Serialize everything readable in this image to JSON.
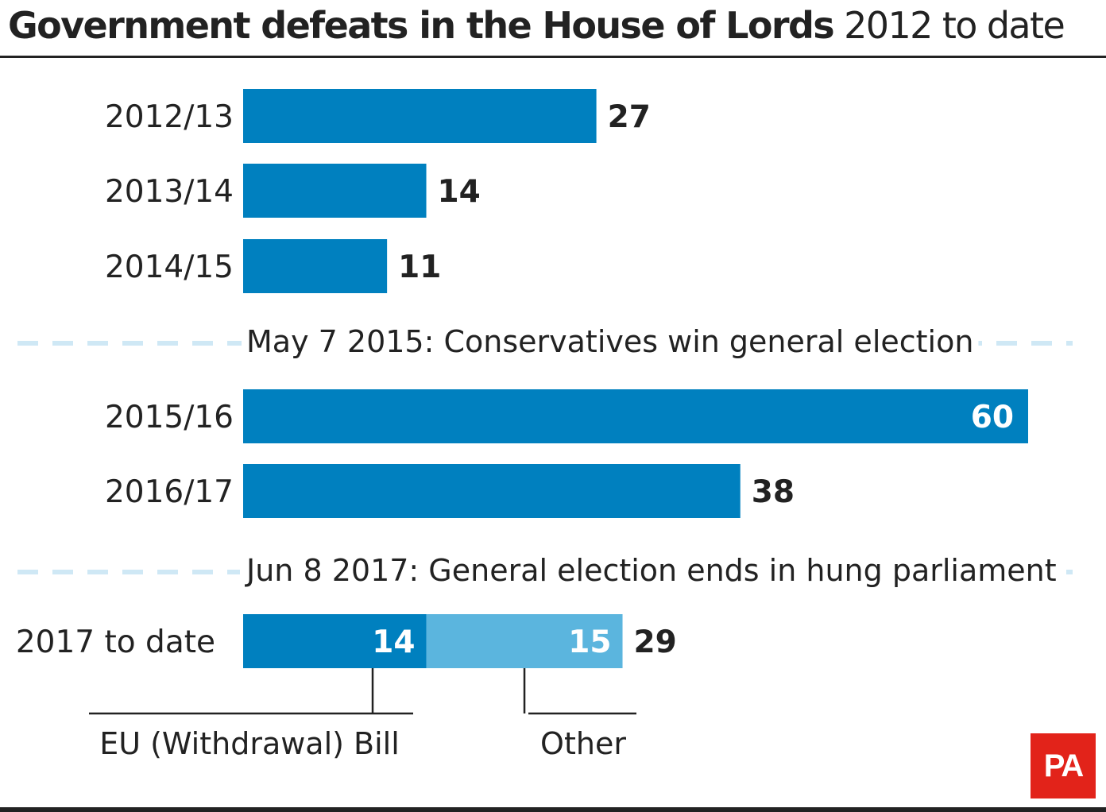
{
  "title": {
    "bold": "Government defeats in the House of Lords",
    "regular": "2012 to date"
  },
  "chart_data": {
    "type": "bar",
    "orientation": "horizontal",
    "title": "Government defeats in the House of Lords 2012 to date",
    "xlabel": "",
    "ylabel": "",
    "xlim": [
      0,
      60
    ],
    "grid": false,
    "categories": [
      "2012/13",
      "2013/14",
      "2014/15",
      "2015/16",
      "2016/17",
      "2017 to date"
    ],
    "series": [
      {
        "name": "EU (Withdrawal) Bill",
        "color": "#0080bf",
        "values": [
          27,
          14,
          11,
          60,
          38,
          14
        ]
      },
      {
        "name": "Other",
        "color": "#5bb5de",
        "values": [
          0,
          0,
          0,
          0,
          0,
          15
        ]
      }
    ],
    "totals": [
      27,
      14,
      11,
      60,
      38,
      29
    ],
    "annotations": [
      {
        "after_category": "2014/15",
        "text": "May 7 2015: Conservatives win general election"
      },
      {
        "after_category": "2016/17",
        "text": "Jun 8 2017: General election ends in hung parliament"
      }
    ],
    "legend": {
      "placement": "below last bar",
      "items": [
        "EU (Withdrawal) Bill",
        "Other"
      ]
    }
  },
  "colors": {
    "primary_bar": "#0080bf",
    "secondary_bar": "#5bb5de",
    "event_dash": "#cfe8f5",
    "text": "#222222"
  },
  "logo": {
    "text": "PA",
    "color": "#e2231a"
  }
}
